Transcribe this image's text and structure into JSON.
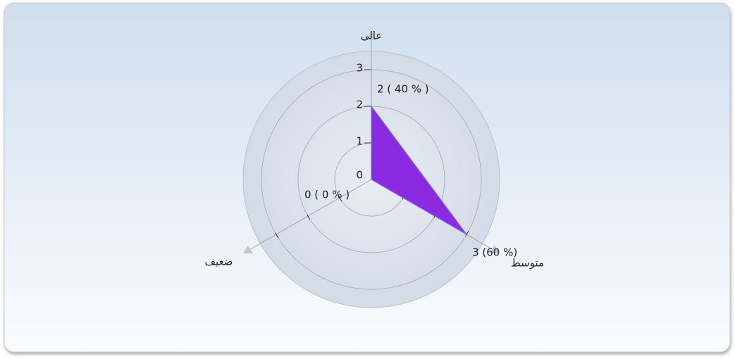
{
  "chart_data": {
    "type": "radar",
    "categories": [
      "عالی",
      "متوسط",
      "ضعیف"
    ],
    "series": [
      {
        "color": "#8a2be2",
        "values": [
          2,
          3,
          0
        ],
        "value_labels": [
          "2 ( 40 % )",
          "3 (60 %)",
          "0 ( 0 % )"
        ]
      }
    ],
    "ylim": [
      0,
      3.5
    ],
    "yticks": [
      0,
      1,
      2,
      3
    ],
    "grid": true
  }
}
